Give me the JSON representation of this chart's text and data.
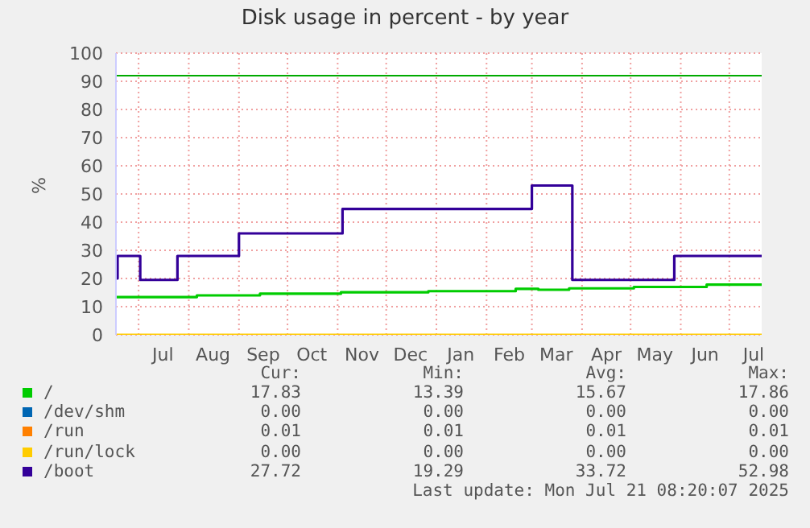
{
  "chart_data": {
    "type": "step",
    "title": "Disk usage in percent - by year",
    "ylabel": "%",
    "xlim": [
      "2024-06-17",
      "2025-07-21"
    ],
    "xticks": [
      {
        "value": "2024-07-01",
        "label": null
      },
      {
        "value": "2024-07-16",
        "label": "Jul"
      },
      {
        "value": "2024-08-01",
        "label": null
      },
      {
        "value": "2024-08-16",
        "label": "Aug"
      },
      {
        "value": "2024-09-01",
        "label": null
      },
      {
        "value": "2024-09-16",
        "label": "Sep"
      },
      {
        "value": "2024-10-01",
        "label": null
      },
      {
        "value": "2024-10-16",
        "label": "Oct"
      },
      {
        "value": "2024-11-01",
        "label": null
      },
      {
        "value": "2024-11-16",
        "label": "Nov"
      },
      {
        "value": "2024-12-01",
        "label": null
      },
      {
        "value": "2024-12-16",
        "label": "Dec"
      },
      {
        "value": "2025-01-01",
        "label": null
      },
      {
        "value": "2025-01-16",
        "label": "Jan"
      },
      {
        "value": "2025-02-01",
        "label": null
      },
      {
        "value": "2025-02-15",
        "label": "Feb"
      },
      {
        "value": "2025-03-01",
        "label": null
      },
      {
        "value": "2025-03-16",
        "label": "Mar"
      },
      {
        "value": "2025-04-01",
        "label": null
      },
      {
        "value": "2025-04-16",
        "label": "Apr"
      },
      {
        "value": "2025-05-01",
        "label": null
      },
      {
        "value": "2025-05-16",
        "label": "May"
      },
      {
        "value": "2025-06-01",
        "label": null
      },
      {
        "value": "2025-06-16",
        "label": "Jun"
      },
      {
        "value": "2025-07-01",
        "label": null
      },
      {
        "value": "2025-07-16",
        "label": "Jul"
      }
    ],
    "ylim": [
      0,
      100
    ],
    "yticks": [
      0,
      10,
      20,
      30,
      40,
      50,
      60,
      70,
      80,
      90,
      100
    ],
    "grid": true,
    "legend": "bottom",
    "ref_lines": [
      {
        "axis": "y",
        "value": 92,
        "color": "#00aa00"
      }
    ],
    "series": [
      {
        "name": "/",
        "color": "#00cc00",
        "x": [
          "2024-06-17",
          "2024-06-19",
          "2024-08-06",
          "2024-09-14",
          "2024-11-03",
          "2024-12-27",
          "2025-02-19",
          "2025-03-05",
          "2025-03-24",
          "2025-05-03",
          "2025-06-17",
          "2025-07-21"
        ],
        "values": [
          13.4,
          13.4,
          14,
          14.6,
          15.1,
          15.5,
          16.3,
          16,
          16.5,
          17,
          17.8,
          17.8
        ]
      },
      {
        "name": "/dev/shm",
        "color": "#0066b3",
        "values": [
          null
        ]
      },
      {
        "name": "/run",
        "color": "#ff8000",
        "values": [
          null
        ]
      },
      {
        "name": "/run/lock",
        "color": "#ffcc00",
        "x": [
          "2024-06-17",
          "2025-07-21"
        ],
        "values": [
          0,
          0
        ]
      },
      {
        "name": "/boot",
        "color": "#330099",
        "x": [
          "2024-06-17",
          "2024-06-18",
          "2024-07-02",
          "2024-07-25",
          "2024-09-01",
          "2024-11-04",
          "2025-03-01",
          "2025-03-26",
          "2025-05-28",
          "2025-07-21"
        ],
        "values": [
          20,
          28,
          19.5,
          28,
          36,
          44.7,
          53,
          19.5,
          28,
          28
        ]
      }
    ],
    "annotations": [
      "Cur:",
      "Min:",
      "Avg:",
      "Max:",
      "17.83",
      "13.39",
      "15.67",
      "17.86",
      "0.00",
      "0.00",
      "0.00",
      "0.00",
      "0.01",
      "0.01",
      "0.01",
      "0.01",
      "0.00",
      "0.00",
      "0.00",
      "0.00",
      "27.72",
      "19.29",
      "33.72",
      "52.98",
      "Last update: Mon Jul 21 08:20:07 2025"
    ]
  }
}
